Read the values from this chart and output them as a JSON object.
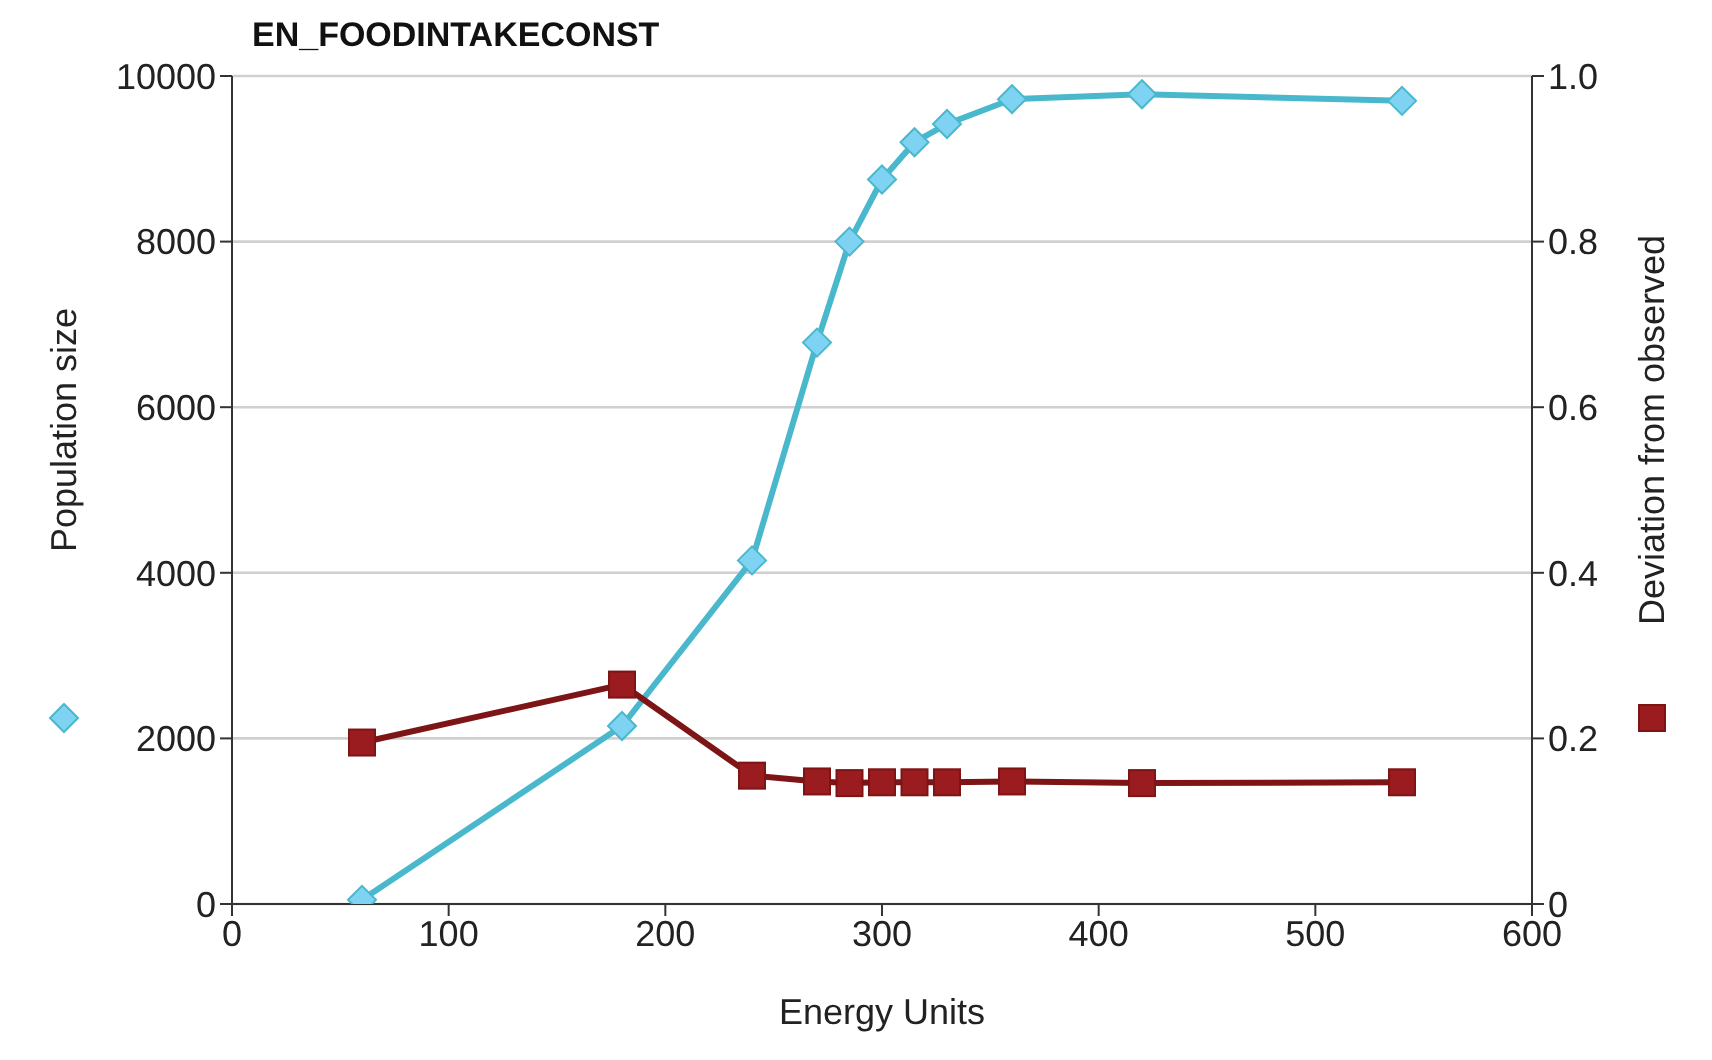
{
  "chart_data": {
    "type": "line",
    "title": "EN_FOODINTAKECONST",
    "xlabel": "Energy Units",
    "ylabel": "Population size",
    "y2label": "Deviation from observed",
    "x": [
      60,
      180,
      240,
      270,
      285,
      300,
      315,
      330,
      360,
      420,
      540
    ],
    "series": [
      {
        "color": "#4ab8cc",
        "marker": "diamond",
        "values": [
          50,
          2150,
          4150,
          6780,
          8000,
          8750,
          9200,
          9420,
          9720,
          9780,
          9700
        ]
      },
      {
        "color": "#7d1416",
        "marker": "square",
        "axis": "y2",
        "values": [
          0.195,
          0.265,
          0.155,
          0.148,
          0.146,
          0.147,
          0.147,
          0.147,
          0.148,
          0.146,
          0.147
        ]
      }
    ],
    "xlim": [
      0,
      600
    ],
    "xticks": [
      0,
      100,
      200,
      300,
      400,
      500,
      600
    ],
    "ylim": [
      0,
      10000
    ],
    "yticks": [
      0,
      2000,
      4000,
      6000,
      8000,
      10000
    ],
    "y2lim": [
      0,
      1
    ],
    "y2ticks": [
      0,
      {
        "value": 0.2,
        "label": "0.2"
      },
      {
        "value": 0.4,
        "label": "0.4"
      },
      {
        "value": 0.6,
        "label": "0.6"
      },
      {
        "value": 0.8,
        "label": "0.8"
      },
      {
        "value": 1,
        "label": "1.0"
      }
    ],
    "grid": "y",
    "line_style": "solid"
  }
}
